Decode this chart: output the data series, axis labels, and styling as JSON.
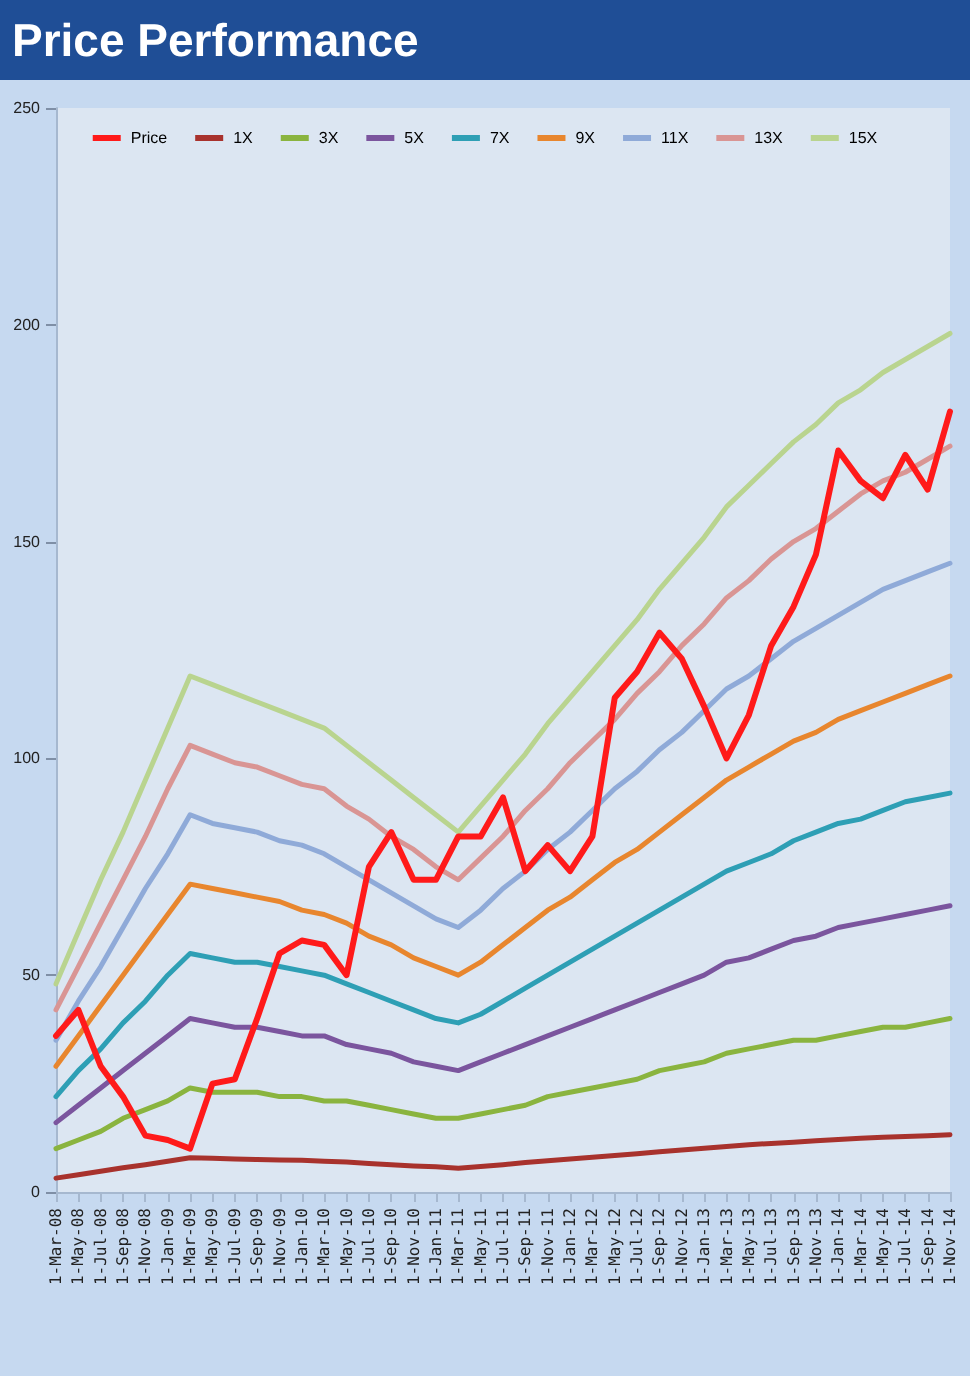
{
  "chart_data": {
    "type": "line",
    "title": "Price Performance",
    "categories": [
      "1-Mar-08",
      "1-May-08",
      "1-Jul-08",
      "1-Sep-08",
      "1-Nov-08",
      "1-Jan-09",
      "1-Mar-09",
      "1-May-09",
      "1-Jul-09",
      "1-Sep-09",
      "1-Nov-09",
      "1-Jan-10",
      "1-Mar-10",
      "1-May-10",
      "1-Jul-10",
      "1-Sep-10",
      "1-Nov-10",
      "1-Jan-11",
      "1-Mar-11",
      "1-May-11",
      "1-Jul-11",
      "1-Sep-11",
      "1-Nov-11",
      "1-Jan-12",
      "1-Mar-12",
      "1-May-12",
      "1-Jul-12",
      "1-Sep-12",
      "1-Nov-12",
      "1-Jan-13",
      "1-Mar-13",
      "1-May-13",
      "1-Jul-13",
      "1-Sep-13",
      "1-Nov-13",
      "1-Jan-14",
      "1-Mar-14",
      "1-May-14",
      "1-Jul-14",
      "1-Sep-14",
      "1-Nov-14"
    ],
    "series": [
      {
        "name": "Price",
        "color": "#ff1a1a",
        "values": [
          36,
          42,
          29,
          22,
          13,
          12,
          10,
          25,
          26,
          40,
          55,
          58,
          57,
          50,
          75,
          83,
          72,
          72,
          82,
          82,
          91,
          74,
          80,
          74,
          82,
          114,
          120,
          129,
          123,
          112,
          100,
          110,
          126,
          135,
          147,
          171,
          164,
          160,
          170,
          162,
          180
        ]
      },
      {
        "name": "1X",
        "color": "#a8322d",
        "values": [
          3.2,
          4.0,
          4.8,
          5.6,
          6.3,
          7.1,
          7.9,
          7.8,
          7.6,
          7.5,
          7.4,
          7.3,
          7.1,
          6.9,
          6.6,
          6.3,
          6.0,
          5.8,
          5.5,
          5.9,
          6.3,
          6.8,
          7.2,
          7.6,
          8.0,
          8.4,
          8.8,
          9.3,
          9.7,
          10.1,
          10.5,
          10.9,
          11.2,
          11.5,
          11.8,
          12.1,
          12.4,
          12.6,
          12.8,
          13.0,
          13.2
        ]
      },
      {
        "name": "3X",
        "color": "#8ab43f",
        "values": [
          10,
          12,
          14,
          17,
          19,
          21,
          24,
          23,
          23,
          23,
          22,
          22,
          21,
          21,
          20,
          19,
          18,
          17,
          17,
          18,
          19,
          20,
          22,
          23,
          24,
          25,
          26,
          28,
          29,
          30,
          32,
          33,
          34,
          35,
          35,
          36,
          37,
          38,
          38,
          39,
          40
        ]
      },
      {
        "name": "5X",
        "color": "#7b559e",
        "values": [
          16,
          20,
          24,
          28,
          32,
          36,
          40,
          39,
          38,
          38,
          37,
          36,
          36,
          34,
          33,
          32,
          30,
          29,
          28,
          30,
          32,
          34,
          36,
          38,
          40,
          42,
          44,
          46,
          48,
          50,
          53,
          54,
          56,
          58,
          59,
          61,
          62,
          63,
          64,
          65,
          66
        ]
      },
      {
        "name": "7X",
        "color": "#2e9fb5",
        "values": [
          22,
          28,
          33,
          39,
          44,
          50,
          55,
          54,
          53,
          53,
          52,
          51,
          50,
          48,
          46,
          44,
          42,
          40,
          39,
          41,
          44,
          47,
          50,
          53,
          56,
          59,
          62,
          65,
          68,
          71,
          74,
          76,
          78,
          81,
          83,
          85,
          86,
          88,
          90,
          91,
          92
        ]
      },
      {
        "name": "9X",
        "color": "#e8862e",
        "values": [
          29,
          36,
          43,
          50,
          57,
          64,
          71,
          70,
          69,
          68,
          67,
          65,
          64,
          62,
          59,
          57,
          54,
          52,
          50,
          53,
          57,
          61,
          65,
          68,
          72,
          76,
          79,
          83,
          87,
          91,
          95,
          98,
          101,
          104,
          106,
          109,
          111,
          113,
          115,
          117,
          119
        ]
      },
      {
        "name": "11X",
        "color": "#8faad8",
        "values": [
          35,
          44,
          52,
          61,
          70,
          78,
          87,
          85,
          84,
          83,
          81,
          80,
          78,
          75,
          72,
          69,
          66,
          63,
          61,
          65,
          70,
          74,
          79,
          83,
          88,
          93,
          97,
          102,
          106,
          111,
          116,
          119,
          123,
          127,
          130,
          133,
          136,
          139,
          141,
          143,
          145
        ]
      },
      {
        "name": "13X",
        "color": "#d99594",
        "values": [
          42,
          52,
          62,
          72,
          82,
          93,
          103,
          101,
          99,
          98,
          96,
          94,
          93,
          89,
          86,
          82,
          79,
          75,
          72,
          77,
          82,
          88,
          93,
          99,
          104,
          109,
          115,
          120,
          126,
          131,
          137,
          141,
          146,
          150,
          153,
          157,
          161,
          164,
          166,
          169,
          172
        ]
      },
      {
        "name": "15X",
        "color": "#b9d48f",
        "values": [
          48,
          60,
          72,
          83,
          95,
          107,
          119,
          117,
          115,
          113,
          111,
          109,
          107,
          103,
          99,
          95,
          91,
          87,
          83,
          89,
          95,
          101,
          108,
          114,
          120,
          126,
          132,
          139,
          145,
          151,
          158,
          163,
          168,
          173,
          177,
          182,
          185,
          189,
          192,
          195,
          198
        ]
      }
    ],
    "ylim": [
      0,
      250
    ],
    "yticks": [
      0,
      50,
      100,
      150,
      200,
      250
    ],
    "grid": false,
    "legend": "top",
    "marker": "none",
    "line_style": "solid"
  }
}
